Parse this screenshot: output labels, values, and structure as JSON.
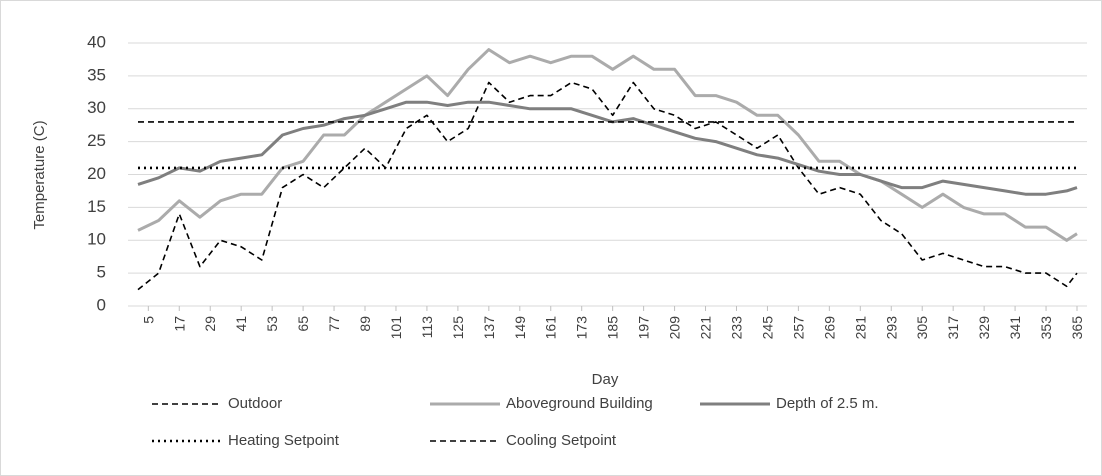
{
  "chart_data": {
    "type": "line",
    "x_label": "Day",
    "y_label": "Temperature (C)",
    "x": [
      1,
      9,
      17,
      25,
      33,
      41,
      49,
      57,
      65,
      73,
      81,
      89,
      97,
      105,
      113,
      121,
      129,
      137,
      145,
      153,
      161,
      169,
      177,
      185,
      193,
      201,
      209,
      217,
      225,
      233,
      241,
      249,
      257,
      265,
      273,
      281,
      289,
      297,
      305,
      313,
      321,
      329,
      337,
      345,
      353,
      361,
      365
    ],
    "series": [
      {
        "name": "Outdoor",
        "color": "#000000",
        "line_style": "dashed",
        "values": [
          2.5,
          5,
          14,
          6,
          10,
          9,
          7,
          18,
          20,
          18,
          21,
          24,
          21,
          27,
          29,
          25,
          27,
          34,
          31,
          32,
          32,
          34,
          33,
          29,
          34,
          30,
          29,
          27,
          28,
          26,
          24,
          26,
          21,
          17,
          18,
          17,
          13,
          11,
          7,
          8,
          7,
          6,
          6,
          5,
          5,
          3,
          5
        ]
      },
      {
        "name": "Aboveground Building",
        "color": "#ababab",
        "line_style": "solid",
        "values": [
          11.5,
          13,
          16,
          13.5,
          16,
          17,
          17,
          21,
          22,
          26,
          26,
          29,
          31,
          33,
          35,
          32,
          36,
          39,
          37,
          38,
          37,
          38,
          38,
          36,
          38,
          36,
          36,
          32,
          32,
          31,
          29,
          29,
          26,
          22,
          22,
          20,
          19,
          17,
          15,
          17,
          15,
          14,
          14,
          12,
          12,
          10,
          11
        ]
      },
      {
        "name": "Depth of 2.5 m.",
        "color": "#7f7f7f",
        "line_style": "solid",
        "values": [
          18.5,
          19.5,
          21,
          20.5,
          22,
          22.5,
          23,
          26,
          27,
          27.5,
          28.5,
          29,
          30,
          31,
          31,
          30.5,
          31,
          31,
          30.5,
          30,
          30,
          30,
          29,
          28,
          28.5,
          27.5,
          26.5,
          25.5,
          25,
          24,
          23,
          22.5,
          21.5,
          20.5,
          20,
          20,
          19,
          18,
          18,
          19,
          18.5,
          18,
          17.5,
          17,
          17,
          17.5,
          18
        ]
      },
      {
        "name": "Heating Setpoint",
        "color": "#000000",
        "line_style": "dotted",
        "x": [
          1,
          365
        ],
        "values": [
          21,
          21
        ]
      },
      {
        "name": "Cooling Setpoint",
        "color": "#000000",
        "line_style": "dashed",
        "x": [
          1,
          365
        ],
        "values": [
          28,
          28
        ]
      }
    ],
    "xlim": [
      1,
      365
    ],
    "xticks": [
      5,
      17,
      29,
      41,
      53,
      65,
      77,
      89,
      101,
      113,
      125,
      137,
      149,
      161,
      173,
      185,
      197,
      209,
      221,
      233,
      245,
      257,
      269,
      281,
      293,
      305,
      317,
      329,
      341,
      353,
      365
    ],
    "ylim": [
      0,
      40
    ],
    "yticks": [
      0,
      5,
      10,
      15,
      20,
      25,
      30,
      35,
      40
    ],
    "grid": true
  }
}
